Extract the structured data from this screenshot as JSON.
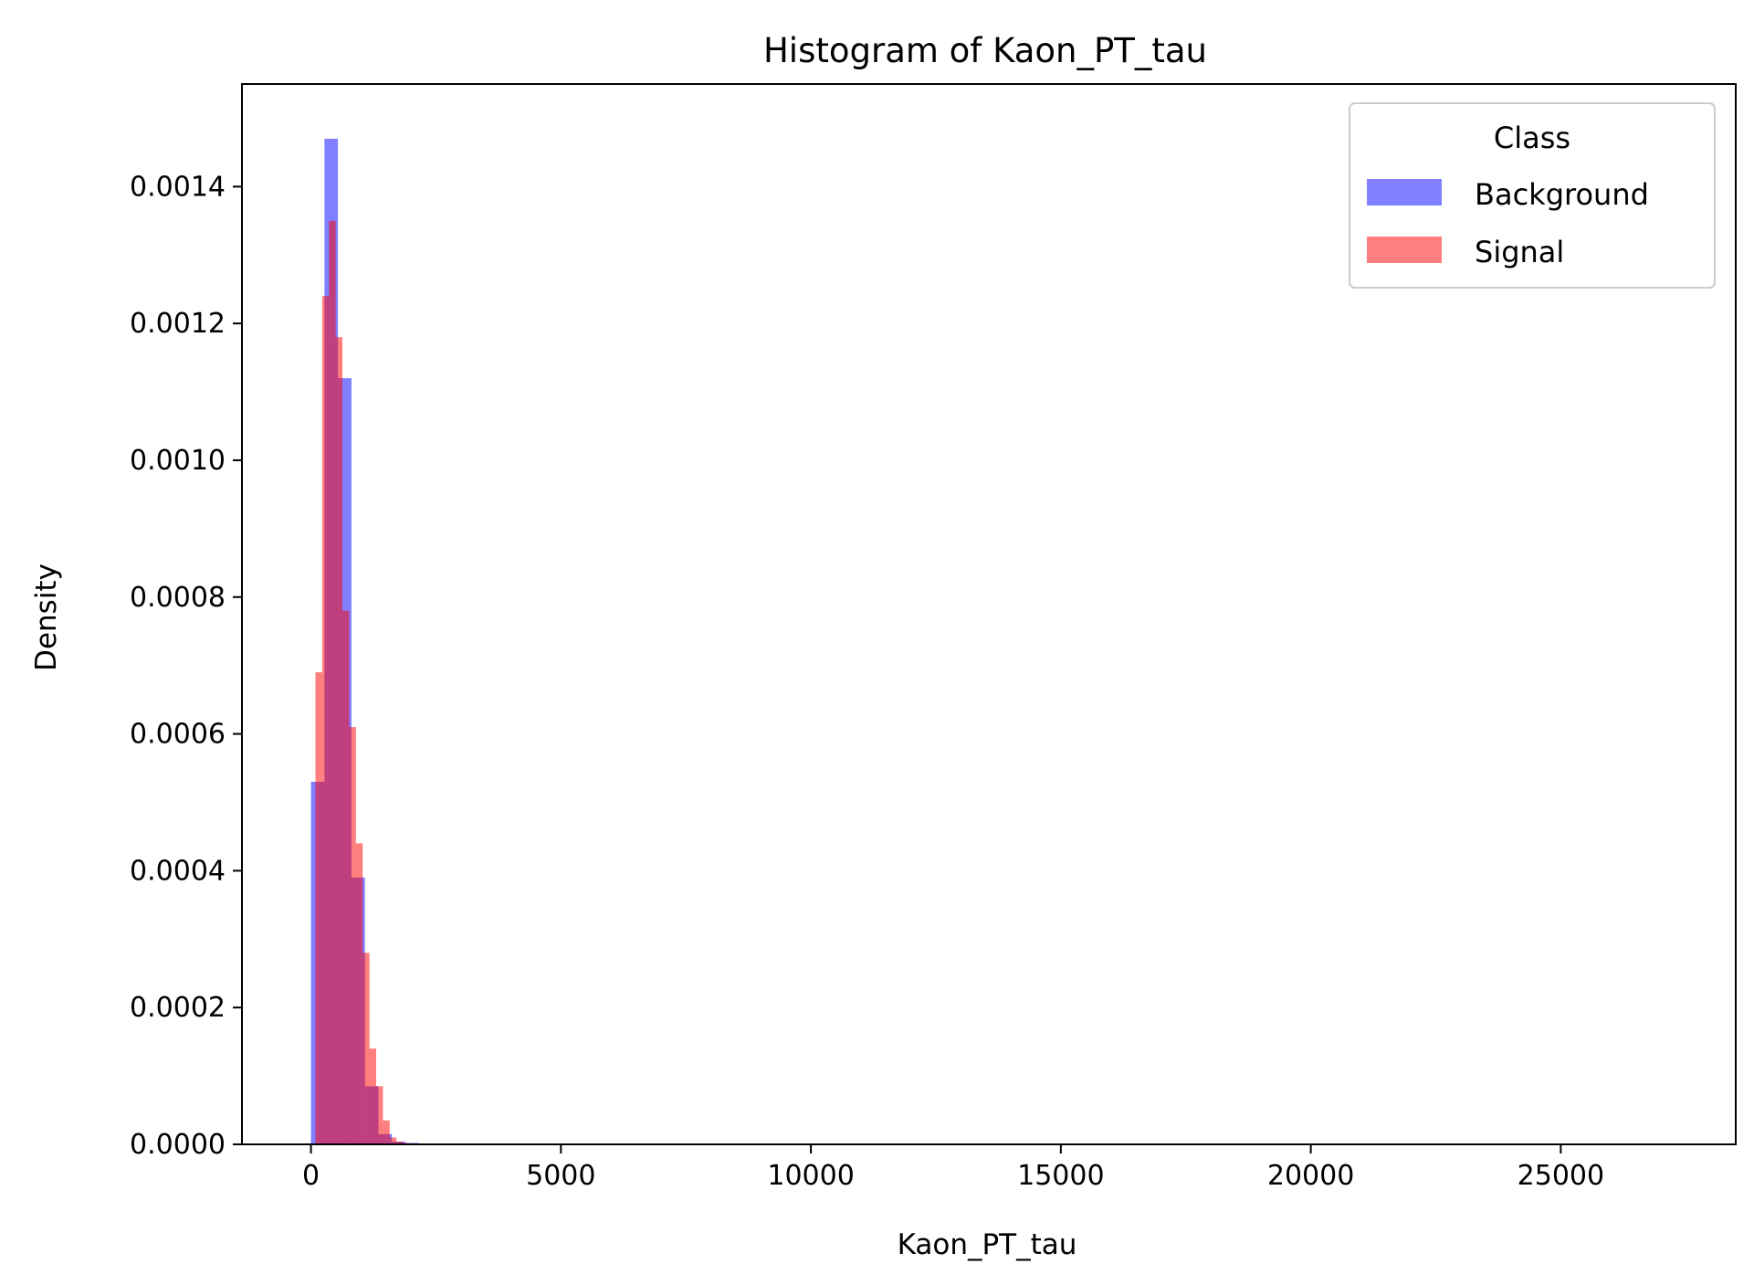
{
  "chart_data": {
    "type": "bar",
    "title": "Histogram of Kaon_PT_tau",
    "xlabel": "Kaon_PT_tau",
    "ylabel": "Density",
    "xlim": [
      -1380,
      28500
    ],
    "ylim": [
      0,
      0.00155
    ],
    "xticks": [
      0,
      5000,
      10000,
      15000,
      20000,
      25000
    ],
    "yticks": [
      0.0,
      0.0002,
      0.0004,
      0.0006,
      0.0008,
      0.001,
      0.0012,
      0.0014
    ],
    "xtick_labels": [
      "0",
      "5000",
      "10000",
      "15000",
      "20000",
      "25000"
    ],
    "ytick_labels": [
      "0.0000",
      "0.0002",
      "0.0004",
      "0.0006",
      "0.0008",
      "0.0010",
      "0.0012",
      "0.0014"
    ],
    "grid": false,
    "legend": {
      "title": "Class",
      "position": "top-right"
    },
    "series": [
      {
        "name": "Background",
        "color": "#0000ff",
        "opacity": 0.5,
        "bin_width": 270,
        "bin_start": 0,
        "values": [
          0.00053,
          0.00147,
          0.00112,
          0.00039,
          8.5e-05,
          1.5e-05,
          4e-06,
          2e-06
        ]
      },
      {
        "name": "Signal",
        "color": "#ff0000",
        "opacity": 0.5,
        "bin_width": 135,
        "bin_start": 90,
        "values": [
          0.00069,
          0.00124,
          0.00135,
          0.00118,
          0.00078,
          0.00061,
          0.00044,
          0.00028,
          0.00014,
          8.5e-05,
          3.5e-05,
          1e-05,
          4e-06,
          2e-06
        ]
      }
    ]
  }
}
